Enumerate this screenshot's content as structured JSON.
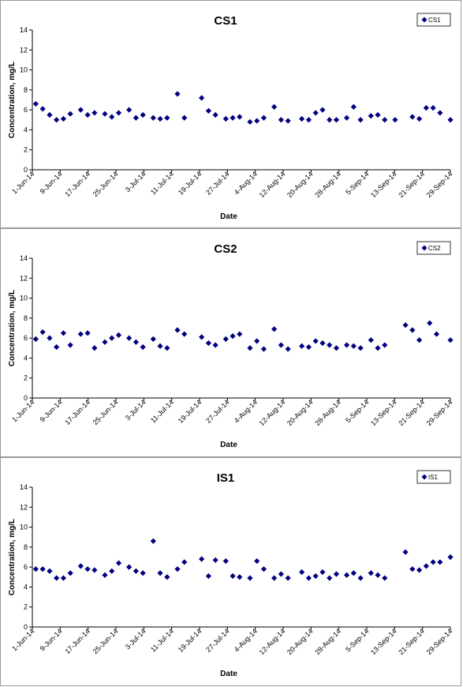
{
  "chart_data": [
    {
      "type": "scatter",
      "title": "CS1",
      "xlabel": "Date",
      "ylabel": "Concentration, mg/L",
      "ylim": [
        0,
        14
      ],
      "yticks": [
        0,
        2,
        4,
        6,
        8,
        10,
        12,
        14
      ],
      "xlim": [
        "2014-06-01",
        "2014-09-30"
      ],
      "xtick_labels": [
        "1-Jun-14",
        "9-Jun-14",
        "17-Jun-14",
        "25-Jun-14",
        "3-Jul-14",
        "11-Jul-14",
        "19-Jul-14",
        "27-Jul-14",
        "4-Aug-14",
        "12-Aug-14",
        "20-Aug-14",
        "28-Aug-14",
        "5-Sep-14",
        "13-Sep-14",
        "21-Sep-14",
        "29-Sep-14"
      ],
      "grid": false,
      "legend_position": "top-right",
      "marker_color": "#000080",
      "series": [
        {
          "name": "CS1",
          "x": [
            "2014-06-02",
            "2014-06-04",
            "2014-06-06",
            "2014-06-08",
            "2014-06-10",
            "2014-06-12",
            "2014-06-15",
            "2014-06-17",
            "2014-06-19",
            "2014-06-22",
            "2014-06-24",
            "2014-06-26",
            "2014-06-29",
            "2014-07-01",
            "2014-07-03",
            "2014-07-06",
            "2014-07-08",
            "2014-07-10",
            "2014-07-13",
            "2014-07-15",
            "2014-07-20",
            "2014-07-22",
            "2014-07-24",
            "2014-07-27",
            "2014-07-29",
            "2014-07-31",
            "2014-08-03",
            "2014-08-05",
            "2014-08-07",
            "2014-08-10",
            "2014-08-12",
            "2014-08-14",
            "2014-08-18",
            "2014-08-20",
            "2014-08-22",
            "2014-08-24",
            "2014-08-26",
            "2014-08-28",
            "2014-08-31",
            "2014-09-02",
            "2014-09-04",
            "2014-09-07",
            "2014-09-09",
            "2014-09-11",
            "2014-09-14",
            "2014-09-19",
            "2014-09-21",
            "2014-09-23",
            "2014-09-25",
            "2014-09-27",
            "2014-09-30"
          ],
          "y": [
            6.6,
            6.1,
            5.5,
            5.0,
            5.1,
            5.6,
            6.0,
            5.5,
            5.7,
            5.6,
            5.3,
            5.7,
            6.0,
            5.2,
            5.5,
            5.2,
            5.1,
            5.2,
            7.6,
            5.2,
            7.2,
            5.9,
            5.5,
            5.1,
            5.2,
            5.3,
            4.8,
            4.9,
            5.2,
            6.3,
            5.0,
            4.9,
            5.1,
            5.0,
            5.7,
            6.0,
            5.0,
            5.0,
            5.2,
            6.3,
            5.0,
            5.4,
            5.5,
            5.0,
            5.0,
            5.3,
            5.1,
            6.2,
            6.2,
            5.7,
            5.0
          ]
        }
      ]
    },
    {
      "type": "scatter",
      "title": "CS2",
      "xlabel": "Date",
      "ylabel": "Concentration, mg/L",
      "ylim": [
        0,
        14
      ],
      "yticks": [
        0,
        2,
        4,
        6,
        8,
        10,
        12,
        14
      ],
      "xlim": [
        "2014-06-01",
        "2014-09-30"
      ],
      "xtick_labels": [
        "1-Jun-14",
        "9-Jun-14",
        "17-Jun-14",
        "25-Jun-14",
        "3-Jul-14",
        "11-Jul-14",
        "19-Jul-14",
        "27-Jul-14",
        "4-Aug-14",
        "12-Aug-14",
        "20-Aug-14",
        "28-Aug-14",
        "5-Sep-14",
        "13-Sep-14",
        "21-Sep-14",
        "29-Sep-14"
      ],
      "grid": false,
      "legend_position": "top-right",
      "marker_color": "#000080",
      "series": [
        {
          "name": "CS2",
          "x": [
            "2014-06-02",
            "2014-06-04",
            "2014-06-06",
            "2014-06-08",
            "2014-06-10",
            "2014-06-12",
            "2014-06-15",
            "2014-06-17",
            "2014-06-19",
            "2014-06-22",
            "2014-06-24",
            "2014-06-26",
            "2014-06-29",
            "2014-07-01",
            "2014-07-03",
            "2014-07-06",
            "2014-07-08",
            "2014-07-10",
            "2014-07-13",
            "2014-07-15",
            "2014-07-20",
            "2014-07-22",
            "2014-07-24",
            "2014-07-27",
            "2014-07-29",
            "2014-07-31",
            "2014-08-03",
            "2014-08-05",
            "2014-08-07",
            "2014-08-10",
            "2014-08-12",
            "2014-08-14",
            "2014-08-18",
            "2014-08-20",
            "2014-08-22",
            "2014-08-24",
            "2014-08-26",
            "2014-08-28",
            "2014-08-31",
            "2014-09-02",
            "2014-09-04",
            "2014-09-07",
            "2014-09-09",
            "2014-09-11",
            "2014-09-17",
            "2014-09-19",
            "2014-09-21",
            "2014-09-24",
            "2014-09-26",
            "2014-09-30"
          ],
          "y": [
            5.9,
            6.6,
            6.0,
            5.1,
            6.5,
            5.3,
            6.4,
            6.5,
            5.0,
            5.6,
            6.0,
            6.3,
            6.0,
            5.6,
            5.1,
            5.9,
            5.2,
            5.0,
            6.8,
            6.4,
            6.1,
            5.5,
            5.3,
            5.9,
            6.2,
            6.4,
            5.0,
            5.7,
            4.9,
            6.9,
            5.3,
            4.9,
            5.2,
            5.1,
            5.7,
            5.5,
            5.3,
            5.0,
            5.3,
            5.2,
            5.0,
            5.8,
            5.0,
            5.3,
            7.3,
            6.8,
            5.8,
            7.5,
            6.4,
            5.8
          ]
        }
      ]
    },
    {
      "type": "scatter",
      "title": "IS1",
      "xlabel": "Date",
      "ylabel": "Concentration, mg/L",
      "ylim": [
        0,
        14
      ],
      "yticks": [
        0,
        2,
        4,
        6,
        8,
        10,
        12,
        14
      ],
      "xlim": [
        "2014-06-01",
        "2014-09-30"
      ],
      "xtick_labels": [
        "1-Jun-14",
        "9-Jun-14",
        "17-Jun-14",
        "25-Jun-14",
        "3-Jul-14",
        "11-Jul-14",
        "19-Jul-14",
        "27-Jul-14",
        "4-Aug-14",
        "12-Aug-14",
        "20-Aug-14",
        "28-Aug-14",
        "5-Sep-14",
        "13-Sep-14",
        "21-Sep-14",
        "29-Sep-14"
      ],
      "grid": false,
      "legend_position": "top-right",
      "marker_color": "#000080",
      "series": [
        {
          "name": "IS1",
          "x": [
            "2014-06-02",
            "2014-06-04",
            "2014-06-06",
            "2014-06-08",
            "2014-06-10",
            "2014-06-12",
            "2014-06-15",
            "2014-06-17",
            "2014-06-19",
            "2014-06-22",
            "2014-06-24",
            "2014-06-26",
            "2014-06-29",
            "2014-07-01",
            "2014-07-03",
            "2014-07-06",
            "2014-07-08",
            "2014-07-10",
            "2014-07-13",
            "2014-07-15",
            "2014-07-20",
            "2014-07-22",
            "2014-07-24",
            "2014-07-27",
            "2014-07-29",
            "2014-07-31",
            "2014-08-03",
            "2014-08-05",
            "2014-08-07",
            "2014-08-10",
            "2014-08-12",
            "2014-08-14",
            "2014-08-18",
            "2014-08-20",
            "2014-08-22",
            "2014-08-24",
            "2014-08-26",
            "2014-08-28",
            "2014-08-31",
            "2014-09-02",
            "2014-09-04",
            "2014-09-07",
            "2014-09-09",
            "2014-09-11",
            "2014-09-17",
            "2014-09-19",
            "2014-09-21",
            "2014-09-23",
            "2014-09-25",
            "2014-09-27",
            "2014-09-30"
          ],
          "y": [
            5.8,
            5.8,
            5.6,
            4.9,
            4.9,
            5.4,
            6.1,
            5.8,
            5.7,
            5.2,
            5.6,
            6.4,
            6.0,
            5.6,
            5.4,
            8.6,
            5.4,
            5.0,
            5.8,
            6.5,
            6.8,
            5.1,
            6.7,
            6.6,
            5.1,
            5.0,
            4.9,
            6.6,
            5.8,
            4.9,
            5.3,
            4.9,
            5.5,
            4.9,
            5.1,
            5.5,
            4.9,
            5.3,
            5.2,
            5.4,
            4.9,
            5.4,
            5.2,
            4.9,
            7.5,
            5.8,
            5.7,
            6.1,
            6.5,
            6.5,
            7.0
          ]
        }
      ]
    }
  ]
}
